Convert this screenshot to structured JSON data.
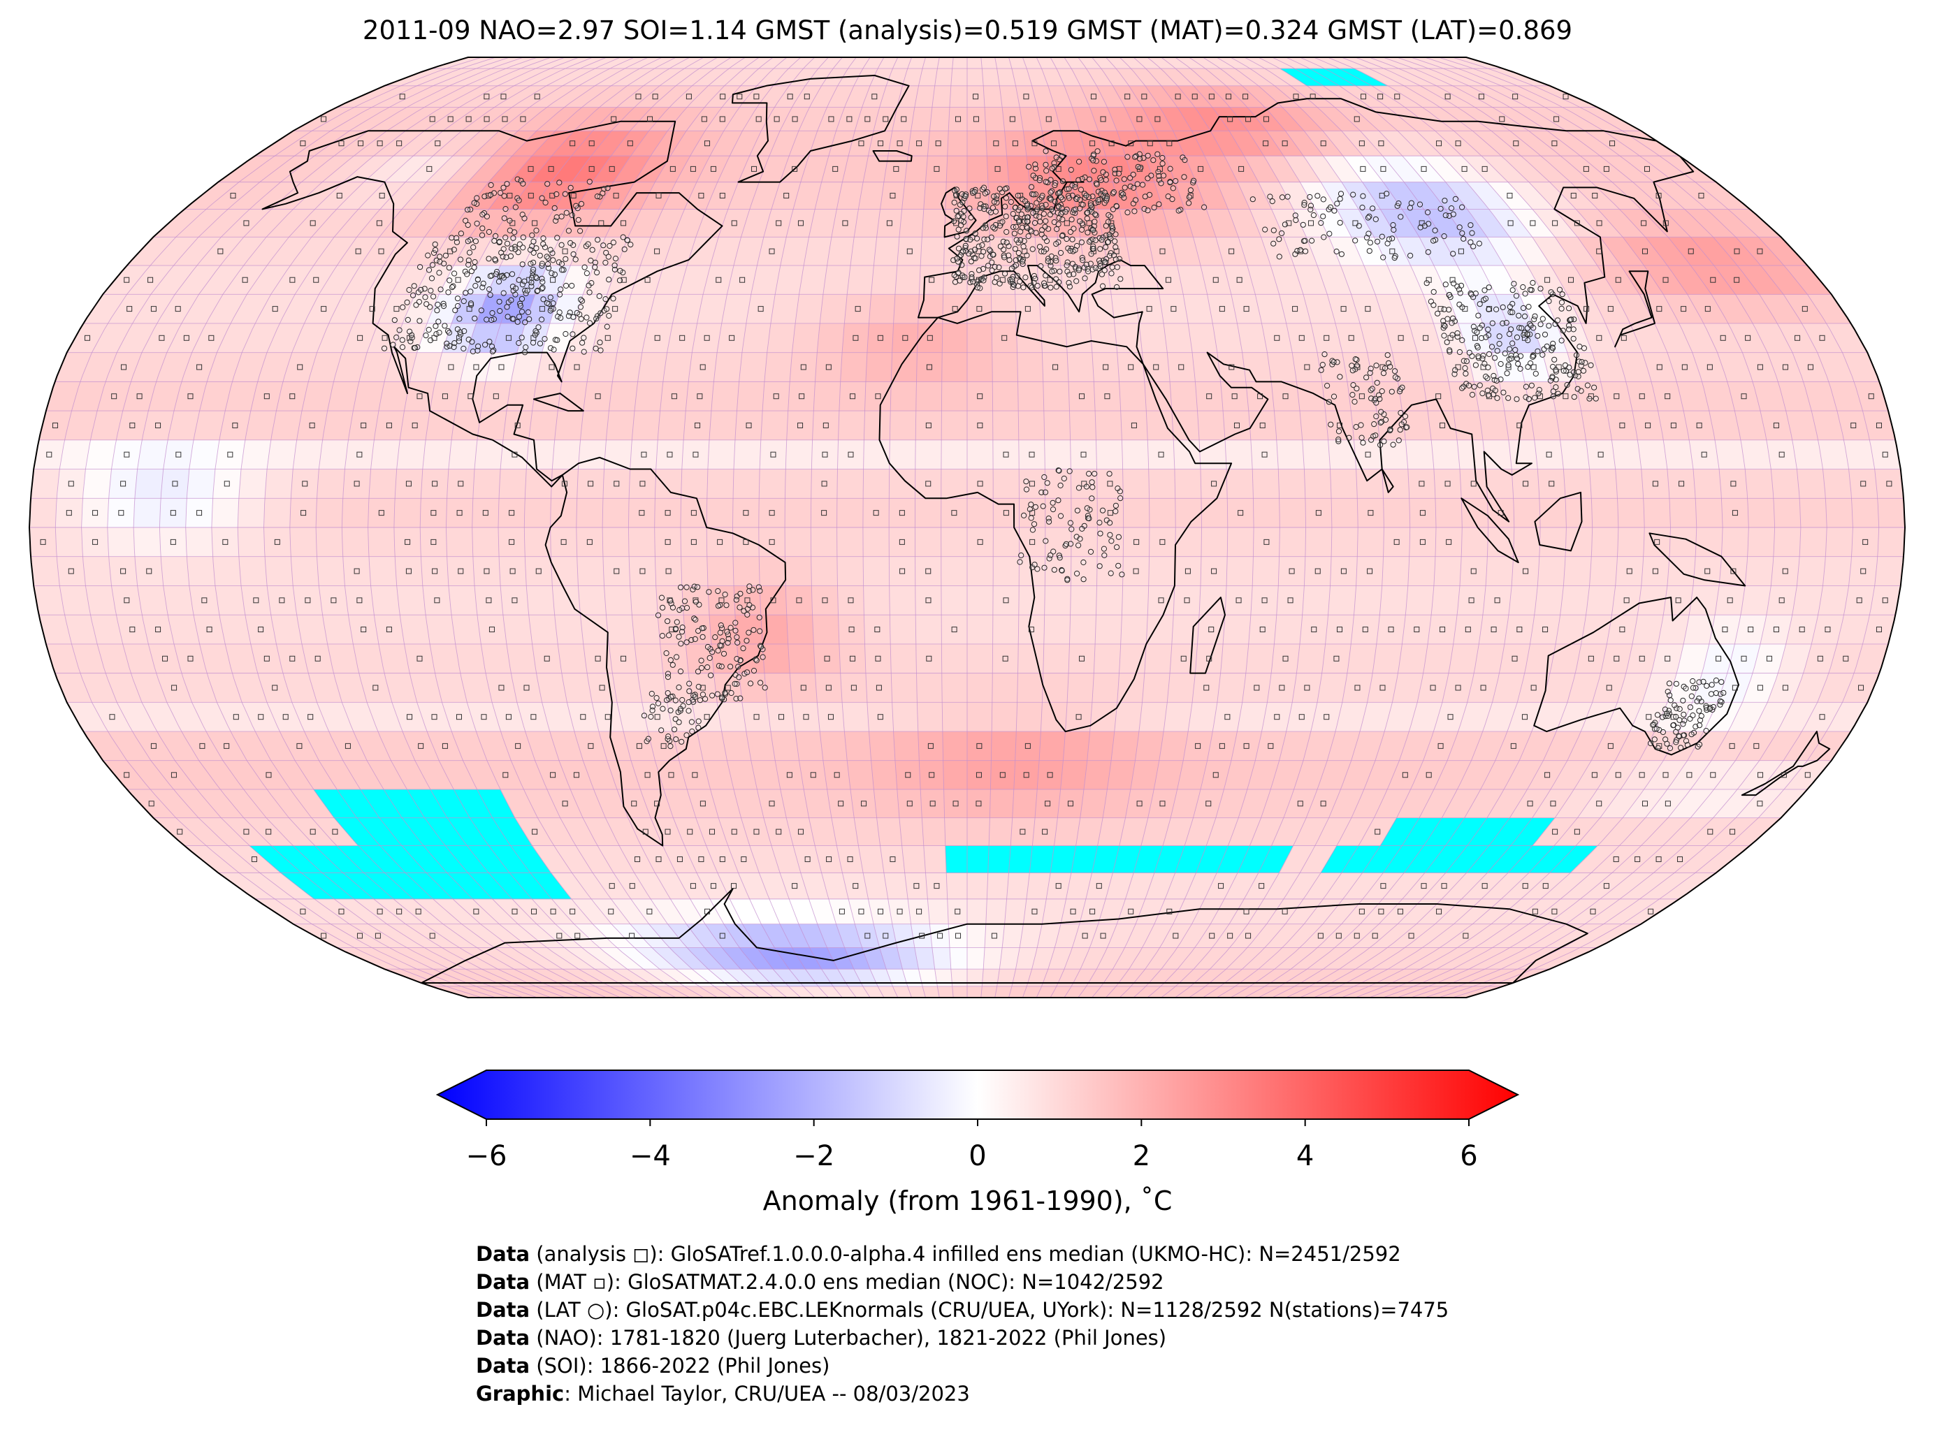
{
  "title": "2011-09 NAO=2.97 SOI=1.14 GMST (analysis)=0.519 GMST (MAT)=0.324 GMST (LAT)=0.869",
  "map": {
    "projection": "robinson",
    "grid_step_deg": 5,
    "missing_color": "#00ffff",
    "coastline_color": "#000000",
    "gridline_color": "#c38fcf"
  },
  "colorbar": {
    "min": -6,
    "max": 6,
    "ticks": [
      "−6",
      "−4",
      "−2",
      "0",
      "2",
      "4",
      "6"
    ],
    "tick_values": [
      -6,
      -4,
      -2,
      0,
      2,
      4,
      6
    ],
    "cold_color": "#0000ff",
    "neutral_color": "#ffffff",
    "warm_color": "#ff0000",
    "label": "Anomaly (from 1961-1990), ˚C"
  },
  "credits": [
    {
      "key": "Data",
      "text": " (analysis ◻): GloSATref.1.0.0.0-alpha.4 infilled ens median (UKMO-HC): N=2451/2592"
    },
    {
      "key": "Data",
      "text": " (MAT ▫): GloSATMAT.2.4.0.0 ens median (NOC): N=1042/2592"
    },
    {
      "key": "Data",
      "text": " (LAT ○): GloSAT.p04c.EBC.LEKnormals (CRU/UEA, UYork): N=1128/2592 N(stations)=7475"
    },
    {
      "key": "Data",
      "text": " (NAO): 1781-1820 (Juerg Luterbacher), 1821-2022 (Phil Jones)"
    },
    {
      "key": "Data",
      "text": " (SOI): 1866-2022 (Phil Jones)"
    },
    {
      "key": "Graphic",
      "text": ": Michael Taylor, CRU/UEA -- 08/03/2023"
    }
  ]
}
